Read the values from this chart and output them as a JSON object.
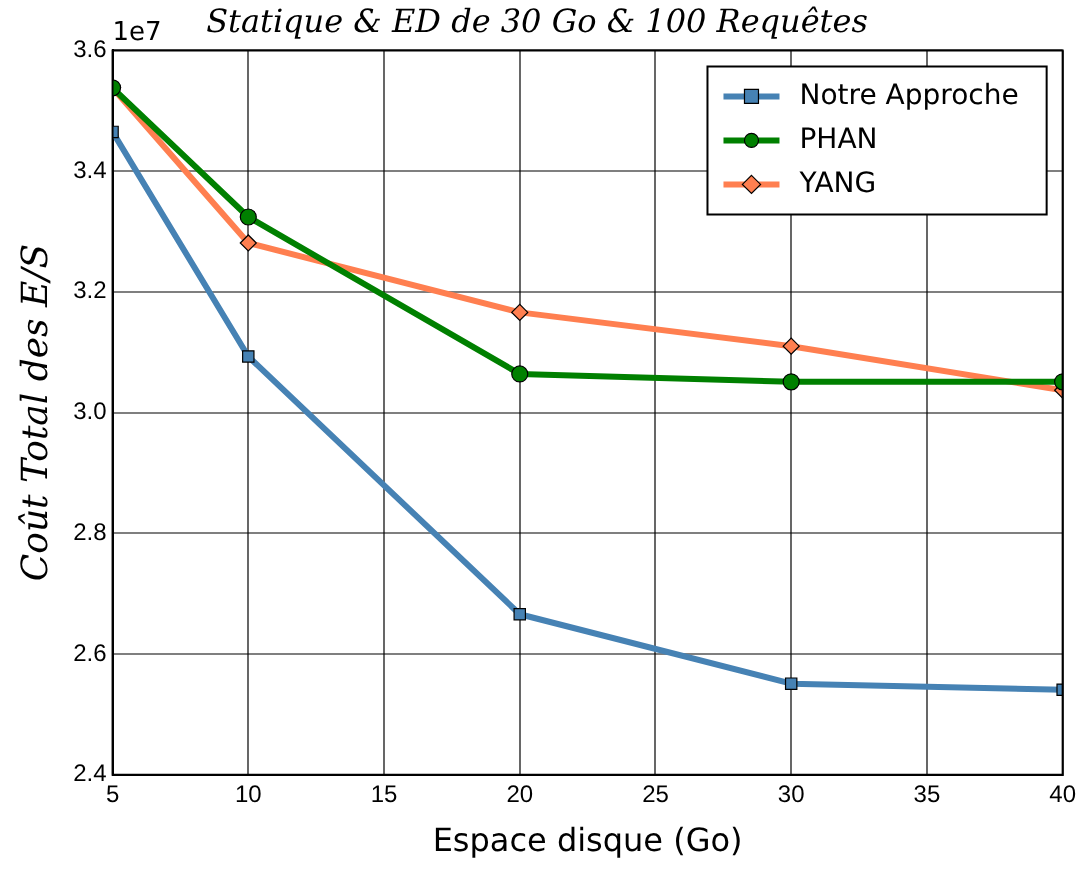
{
  "chart_data": {
    "type": "line",
    "title": "Statique & ED de 30 Go & 100 Requêtes",
    "xlabel": "Espace disque (Go)",
    "ylabel": "Coût Total des E/S",
    "x": [
      5,
      10,
      20,
      30,
      40
    ],
    "series": [
      {
        "name": "Notre Approche",
        "color": "#4682b4",
        "marker": "square",
        "values": [
          3.465,
          3.093,
          2.666,
          2.551,
          2.541
        ]
      },
      {
        "name": "PHAN",
        "color": "#008000",
        "marker": "circle",
        "values": [
          3.538,
          3.324,
          3.064,
          3.051,
          3.051
        ]
      },
      {
        "name": "YANG",
        "color": "#ff7f50",
        "marker": "diamond",
        "values": [
          3.538,
          3.281,
          3.166,
          3.11,
          3.037
        ]
      }
    ],
    "xlim": [
      5,
      40
    ],
    "xticks": [
      5,
      10,
      15,
      20,
      25,
      30,
      35,
      40
    ],
    "ylim": [
      2.4,
      3.6
    ],
    "yticks": [
      2.4,
      2.6,
      2.8,
      {
        "value": 3,
        "label": "3.0"
      },
      3.2,
      3.4,
      3.6
    ],
    "annotations": [
      "1e7"
    ],
    "grid": true,
    "legend": "top right",
    "line_style": "solid"
  }
}
